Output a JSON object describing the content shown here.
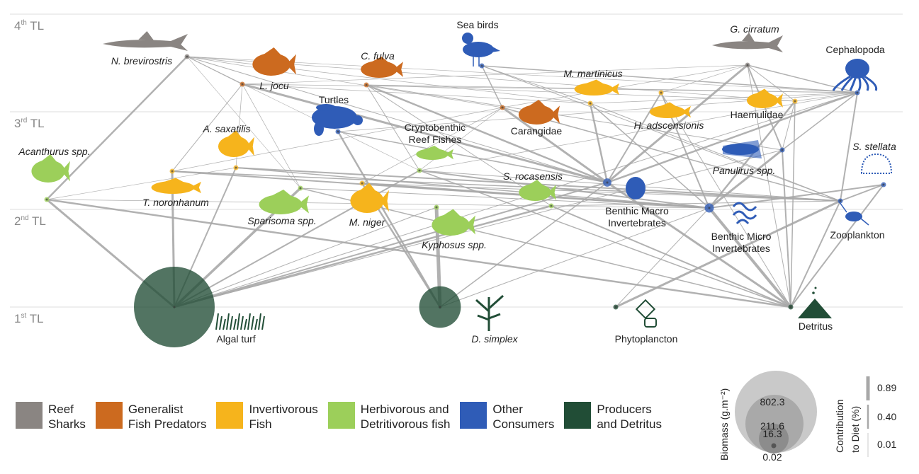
{
  "trophic_levels": [
    {
      "num": "4",
      "sup": "th",
      "suffix": " TL"
    },
    {
      "num": "3",
      "sup": "rd",
      "suffix": " TL"
    },
    {
      "num": "2",
      "sup": "nd",
      "suffix": " TL"
    },
    {
      "num": "1",
      "sup": "st",
      "suffix": " TL"
    }
  ],
  "groups": [
    {
      "id": "sharks",
      "label": "Reef\nSharks",
      "color": "#8a8582"
    },
    {
      "id": "predators",
      "label": "Generalist\nFish Predators",
      "color": "#cc6a1f"
    },
    {
      "id": "invertivorous",
      "label": "Invertivorous\nFish",
      "color": "#f6b41c"
    },
    {
      "id": "herbivorous",
      "label": "Herbivorous and\nDetritivorous fish",
      "color": "#9ccf5a"
    },
    {
      "id": "consumers",
      "label": "Other\nConsumers",
      "color": "#2f5cb7"
    },
    {
      "id": "producers",
      "label": "Producers\nand Detritus",
      "color": "#214d36"
    }
  ],
  "nodes": [
    {
      "id": "nbrev",
      "label": "N. brevirostris",
      "italic": true,
      "group": "sharks",
      "tl": 3.95,
      "biomass": 0.02
    },
    {
      "id": "gcirr",
      "label": "G. cirratum",
      "italic": true,
      "group": "sharks",
      "tl": 3.75,
      "biomass": 0.4
    },
    {
      "id": "ljocu",
      "label": "L. jocu",
      "italic": true,
      "group": "predators",
      "tl": 3.6,
      "biomass": 1.4
    },
    {
      "id": "cfulva",
      "label": "C. fulva",
      "italic": true,
      "group": "predators",
      "tl": 3.58,
      "biomass": 0.3
    },
    {
      "id": "carang",
      "label": "Carangidae",
      "italic": false,
      "group": "predators",
      "tl": 3.05,
      "biomass": 1.1
    },
    {
      "id": "mmart",
      "label": "M. martinicus",
      "italic": true,
      "group": "invertivorous",
      "tl": 3.5,
      "biomass": 1.0
    },
    {
      "id": "hadsc",
      "label": "H. adscensionis",
      "italic": true,
      "group": "invertivorous",
      "tl": 3.1,
      "biomass": 0.4
    },
    {
      "id": "haemul",
      "label": "Haemulidae",
      "italic": false,
      "group": "invertivorous",
      "tl": 3.14,
      "biomass": 0.8
    },
    {
      "id": "asax",
      "label": "A. saxatilis",
      "italic": true,
      "group": "invertivorous",
      "tl": 2.55,
      "biomass": 0.8
    },
    {
      "id": "tnoron",
      "label": "T. noronhanum",
      "italic": true,
      "group": "invertivorous",
      "tl": 2.48,
      "biomass": 0.1
    },
    {
      "id": "mniger",
      "label": "M. niger",
      "italic": true,
      "group": "invertivorous",
      "tl": 2.37,
      "biomass": 0.2
    },
    {
      "id": "srocas",
      "label": "S. rocasensis",
      "italic": true,
      "group": "herbivorous",
      "tl": 2.1,
      "biomass": 0.3
    },
    {
      "id": "cryptob",
      "label": "Cryptobenthic\nReef Fishes",
      "italic": false,
      "group": "herbivorous",
      "tl": 2.5,
      "biomass": 0.7
    },
    {
      "id": "sparis",
      "label": "Sparisoma spp.",
      "italic": true,
      "group": "herbivorous",
      "tl": 2.3,
      "biomass": 0.9
    },
    {
      "id": "acanth",
      "label": "Acanthurus spp.",
      "italic": true,
      "group": "herbivorous",
      "tl": 2.1,
      "biomass": 2.4
    },
    {
      "id": "kypho",
      "label": "Kyphosus spp.",
      "italic": true,
      "group": "herbivorous",
      "tl": 2.0,
      "biomass": 0.5
    },
    {
      "id": "seabirds",
      "label": "Sea birds",
      "italic": false,
      "group": "consumers",
      "tl": 3.5,
      "biomass": 0.02
    },
    {
      "id": "turtles",
      "label": "Turtles",
      "italic": false,
      "group": "consumers",
      "tl": 2.8,
      "biomass": 0.1
    },
    {
      "id": "cephal",
      "label": "Cephalopoda",
      "italic": false,
      "group": "consumers",
      "tl": 3.35,
      "biomass": 0.3
    },
    {
      "id": "panul",
      "label": "Panulirus spp.",
      "italic": true,
      "group": "consumers",
      "tl": 2.6,
      "biomass": 2.0
    },
    {
      "id": "sstell",
      "label": "S. stellata",
      "italic": true,
      "group": "consumers",
      "tl": 2.28,
      "biomass": 0.4
    },
    {
      "id": "bmacro",
      "label": "Benthic Macro\nInvertebrates",
      "italic": false,
      "group": "consumers",
      "tl": 2.26,
      "biomass": 8.5
    },
    {
      "id": "bmicro",
      "label": "Benthic Micro\nInvertebrates",
      "italic": false,
      "group": "consumers",
      "tl": 2.0,
      "biomass": 10.5
    },
    {
      "id": "zoopl",
      "label": "Zooplankton",
      "italic": false,
      "group": "consumers",
      "tl": 2.08,
      "biomass": 0.1
    },
    {
      "id": "algal",
      "label": "Algal turf",
      "italic": false,
      "group": "producers",
      "tl": 1.0,
      "biomass": 802.3
    },
    {
      "id": "dsimp",
      "label": "D. simplex",
      "italic": true,
      "group": "producers",
      "tl": 1.0,
      "biomass": 211.6
    },
    {
      "id": "phyto",
      "label": "Phytoplancton",
      "italic": false,
      "group": "producers",
      "tl": 1.0,
      "biomass": 0.3
    },
    {
      "id": "detr",
      "label": "Detritus",
      "italic": false,
      "group": "producers",
      "tl": 1.0,
      "biomass": 1.2
    }
  ],
  "links": [
    [
      "nbrev",
      "acanth",
      0.4
    ],
    [
      "nbrev",
      "ljocu",
      0.1
    ],
    [
      "nbrev",
      "carang",
      0.05
    ],
    [
      "nbrev",
      "mmart",
      0.05
    ],
    [
      "nbrev",
      "cephal",
      0.03
    ],
    [
      "nbrev",
      "bmacro",
      0.1
    ],
    [
      "nbrev",
      "haemul",
      0.05
    ],
    [
      "nbrev",
      "sparis",
      0.02
    ],
    [
      "nbrev",
      "cryptob",
      0.03
    ],
    [
      "gcirr",
      "cephal",
      0.2
    ],
    [
      "gcirr",
      "panul",
      0.3
    ],
    [
      "gcirr",
      "bmacro",
      0.5
    ],
    [
      "gcirr",
      "haemul",
      0.1
    ],
    [
      "gcirr",
      "detr",
      0.1
    ],
    [
      "gcirr",
      "carang",
      0.05
    ],
    [
      "gcirr",
      "ljocu",
      0.03
    ],
    [
      "gcirr",
      "hadsc",
      0.03
    ],
    [
      "ljocu",
      "tnoron",
      0.1
    ],
    [
      "ljocu",
      "bmacro",
      0.5
    ],
    [
      "ljocu",
      "asax",
      0.05
    ],
    [
      "ljocu",
      "cephal",
      0.05
    ],
    [
      "ljocu",
      "mmart",
      0.05
    ],
    [
      "ljocu",
      "sparis",
      0.05
    ],
    [
      "cfulva",
      "bmacro",
      0.4
    ],
    [
      "cfulva",
      "srocas",
      0.1
    ],
    [
      "cfulva",
      "cryptob",
      0.1
    ],
    [
      "cfulva",
      "haemul",
      0.05
    ],
    [
      "cfulva",
      "cephal",
      0.05
    ],
    [
      "cfulva",
      "panul",
      0.1
    ],
    [
      "carang",
      "bmacro",
      0.5
    ],
    [
      "carang",
      "zoopl",
      0.2
    ],
    [
      "carang",
      "mniger",
      0.05
    ],
    [
      "carang",
      "cryptob",
      0.05
    ],
    [
      "carang",
      "tnoron",
      0.05
    ],
    [
      "mmart",
      "bmacro",
      0.4
    ],
    [
      "mmart",
      "bmicro",
      0.2
    ],
    [
      "mmart",
      "cephal",
      0.05
    ],
    [
      "mmart",
      "zoopl",
      0.1
    ],
    [
      "hadsc",
      "bmicro",
      0.3
    ],
    [
      "hadsc",
      "bmacro",
      0.3
    ],
    [
      "hadsc",
      "detr",
      0.1
    ],
    [
      "haemul",
      "bmicro",
      0.4
    ],
    [
      "haemul",
      "panul",
      0.1
    ],
    [
      "haemul",
      "detr",
      0.2
    ],
    [
      "haemul",
      "cephal",
      0.05
    ],
    [
      "asax",
      "algal",
      0.3
    ],
    [
      "asax",
      "zoopl",
      0.3
    ],
    [
      "asax",
      "bmicro",
      0.2
    ],
    [
      "asax",
      "acanth",
      0.03
    ],
    [
      "tnoron",
      "algal",
      0.5
    ],
    [
      "tnoron",
      "bmicro",
      0.3
    ],
    [
      "tnoron",
      "zoopl",
      0.2
    ],
    [
      "mniger",
      "dsimp",
      0.4
    ],
    [
      "mniger",
      "bmicro",
      0.4
    ],
    [
      "mniger",
      "zoopl",
      0.1
    ],
    [
      "srocas",
      "algal",
      0.4
    ],
    [
      "srocas",
      "detr",
      0.3
    ],
    [
      "srocas",
      "zoopl",
      0.1
    ],
    [
      "cryptob",
      "algal",
      0.3
    ],
    [
      "cryptob",
      "bmicro",
      0.3
    ],
    [
      "cryptob",
      "detr",
      0.2
    ],
    [
      "cryptob",
      "zoopl",
      0.1
    ],
    [
      "sparis",
      "algal",
      0.6
    ],
    [
      "sparis",
      "detr",
      0.2
    ],
    [
      "sparis",
      "bmicro",
      0.1
    ],
    [
      "acanth",
      "algal",
      0.5
    ],
    [
      "acanth",
      "detr",
      0.4
    ],
    [
      "acanth",
      "bmicro",
      0.05
    ],
    [
      "kypho",
      "dsimp",
      0.89
    ],
    [
      "kypho",
      "algal",
      0.1
    ],
    [
      "seabirds",
      "cephal",
      0.2
    ],
    [
      "seabirds",
      "carang",
      0.2
    ],
    [
      "seabirds",
      "zoopl",
      0.1
    ],
    [
      "seabirds",
      "mmart",
      0.1
    ],
    [
      "turtles",
      "dsimp",
      0.4
    ],
    [
      "turtles",
      "bmacro",
      0.2
    ],
    [
      "turtles",
      "cephal",
      0.05
    ],
    [
      "cephal",
      "zoopl",
      0.3
    ],
    [
      "cephal",
      "bmacro",
      0.4
    ],
    [
      "cephal",
      "panul",
      0.2
    ],
    [
      "cephal",
      "cryptob",
      0.05
    ],
    [
      "cephal",
      "algal",
      0.1
    ],
    [
      "panul",
      "bmicro",
      0.5
    ],
    [
      "panul",
      "detr",
      0.3
    ],
    [
      "panul",
      "algal",
      0.1
    ],
    [
      "sstell",
      "bmicro",
      0.3
    ],
    [
      "sstell",
      "zoopl",
      0.3
    ],
    [
      "sstell",
      "detr",
      0.3
    ],
    [
      "bmacro",
      "detr",
      0.5
    ],
    [
      "bmacro",
      "algal",
      0.3
    ],
    [
      "bmacro",
      "dsimp",
      0.2
    ],
    [
      "bmicro",
      "detr",
      0.7
    ],
    [
      "bmicro",
      "phyto",
      0.1
    ],
    [
      "bmicro",
      "dsimp",
      0.1
    ],
    [
      "zoopl",
      "phyto",
      0.5
    ],
    [
      "zoopl",
      "detr",
      0.3
    ]
  ],
  "biomass_legend": {
    "label": "Biomass (g.m⁻²)",
    "values": [
      "802.3",
      "211.6",
      "16.3",
      "0.02"
    ]
  },
  "diet_legend": {
    "label": "Contribution\nto Diet (%)",
    "values": [
      "0.89",
      "0.40",
      "0.01"
    ]
  }
}
